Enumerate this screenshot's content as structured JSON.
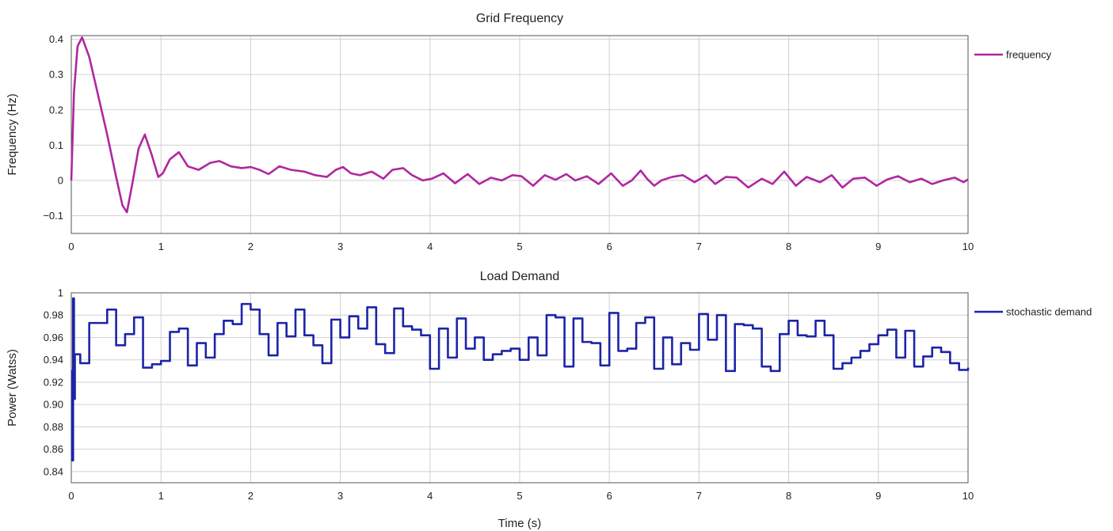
{
  "colors": {
    "frequency": "#b0279f",
    "demand": "#1c24a8"
  },
  "chart_data": [
    {
      "type": "line",
      "title": "Grid Frequency",
      "xlabel": "",
      "ylabel": "Frequency (Hz)",
      "xlim": [
        0,
        10
      ],
      "ylim": [
        -0.15,
        0.41
      ],
      "xticks": [
        0,
        1,
        2,
        3,
        4,
        5,
        6,
        7,
        8,
        9,
        10
      ],
      "xtick_labels": [
        "0",
        "1",
        "2",
        "3",
        "4",
        "5",
        "6",
        "7",
        "8",
        "9",
        "10"
      ],
      "yticks": [
        -0.1,
        0,
        0.1,
        0.2,
        0.3,
        0.4
      ],
      "ytick_labels": [
        "−0.1",
        "0",
        "0.1",
        "0.2",
        "0.3",
        "0.4"
      ],
      "grid": true,
      "legend": "right",
      "series": [
        {
          "name": "frequency",
          "x": [
            0,
            0.03,
            0.07,
            0.12,
            0.2,
            0.3,
            0.4,
            0.5,
            0.57,
            0.62,
            0.68,
            0.75,
            0.82,
            0.9,
            0.97,
            1.02,
            1.1,
            1.2,
            1.3,
            1.42,
            1.55,
            1.65,
            1.78,
            1.9,
            2.0,
            2.1,
            2.2,
            2.32,
            2.45,
            2.6,
            2.72,
            2.85,
            2.95,
            3.03,
            3.12,
            3.22,
            3.35,
            3.48,
            3.58,
            3.7,
            3.8,
            3.92,
            4.02,
            4.15,
            4.28,
            4.42,
            4.55,
            4.68,
            4.8,
            4.92,
            5.02,
            5.15,
            5.28,
            5.4,
            5.52,
            5.62,
            5.75,
            5.88,
            6.02,
            6.15,
            6.25,
            6.35,
            6.42,
            6.5,
            6.58,
            6.7,
            6.82,
            6.95,
            7.08,
            7.18,
            7.3,
            7.42,
            7.55,
            7.7,
            7.82,
            7.95,
            8.08,
            8.2,
            8.35,
            8.48,
            8.6,
            8.72,
            8.85,
            8.98,
            9.1,
            9.22,
            9.35,
            9.48,
            9.6,
            9.72,
            9.85,
            9.95,
            10.0
          ],
          "y": [
            0.0,
            0.25,
            0.38,
            0.405,
            0.35,
            0.24,
            0.13,
            0.01,
            -0.07,
            -0.09,
            -0.01,
            0.09,
            0.13,
            0.07,
            0.01,
            0.02,
            0.06,
            0.08,
            0.04,
            0.03,
            0.05,
            0.055,
            0.04,
            0.035,
            0.038,
            0.03,
            0.018,
            0.04,
            0.03,
            0.025,
            0.015,
            0.01,
            0.03,
            0.038,
            0.02,
            0.015,
            0.025,
            0.005,
            0.03,
            0.035,
            0.015,
            0.0,
            0.005,
            0.02,
            -0.008,
            0.018,
            -0.01,
            0.008,
            0.0,
            0.015,
            0.012,
            -0.015,
            0.015,
            0.002,
            0.018,
            0.0,
            0.012,
            -0.01,
            0.02,
            -0.015,
            0.0,
            0.028,
            0.005,
            -0.015,
            0.0,
            0.01,
            0.015,
            -0.005,
            0.015,
            -0.01,
            0.01,
            0.008,
            -0.02,
            0.005,
            -0.01,
            0.025,
            -0.015,
            0.01,
            -0.005,
            0.015,
            -0.02,
            0.005,
            0.008,
            -0.015,
            0.003,
            0.012,
            -0.005,
            0.005,
            -0.01,
            0.0,
            0.008,
            -0.005,
            0.003
          ]
        }
      ]
    },
    {
      "type": "line",
      "title": "Load Demand",
      "xlabel": "Time (s)",
      "ylabel": "Power (Watss)",
      "xlim": [
        0,
        10
      ],
      "ylim": [
        0.83,
        1.0
      ],
      "xticks": [
        0,
        1,
        2,
        3,
        4,
        5,
        6,
        7,
        8,
        9,
        10
      ],
      "xtick_labels": [
        "0",
        "1",
        "2",
        "3",
        "4",
        "5",
        "6",
        "7",
        "8",
        "9",
        "10"
      ],
      "yticks": [
        0.84,
        0.86,
        0.88,
        0.9,
        0.92,
        0.94,
        0.96,
        0.98,
        1.0
      ],
      "ytick_labels": [
        "0.84",
        "0.86",
        "0.88",
        "0.90",
        "0.92",
        "0.94",
        "0.96",
        "0.98",
        "1"
      ],
      "grid": true,
      "legend": "right",
      "series": [
        {
          "name": "stochastic demand",
          "step": true,
          "x": [
            0,
            0.01,
            0.02,
            0.03,
            0.04,
            0.1,
            0.2,
            0.3,
            0.4,
            0.5,
            0.6,
            0.7,
            0.8,
            0.9,
            1.0,
            1.1,
            1.2,
            1.3,
            1.4,
            1.5,
            1.6,
            1.7,
            1.8,
            1.9,
            2.0,
            2.1,
            2.2,
            2.3,
            2.4,
            2.5,
            2.6,
            2.7,
            2.8,
            2.9,
            3.0,
            3.1,
            3.2,
            3.3,
            3.4,
            3.5,
            3.6,
            3.7,
            3.8,
            3.9,
            4.0,
            4.1,
            4.2,
            4.3,
            4.4,
            4.5,
            4.6,
            4.7,
            4.8,
            4.9,
            5.0,
            5.1,
            5.2,
            5.3,
            5.4,
            5.5,
            5.6,
            5.7,
            5.8,
            5.9,
            6.0,
            6.1,
            6.2,
            6.3,
            6.4,
            6.5,
            6.6,
            6.7,
            6.8,
            6.9,
            7.0,
            7.1,
            7.2,
            7.3,
            7.4,
            7.5,
            7.6,
            7.7,
            7.8,
            7.9,
            8.0,
            8.1,
            8.2,
            8.3,
            8.4,
            8.5,
            8.6,
            8.7,
            8.8,
            8.9,
            9.0,
            9.1,
            9.2,
            9.3,
            9.4,
            9.5,
            9.6,
            9.7,
            9.8,
            9.9,
            10.0
          ],
          "y": [
            0.93,
            0.85,
            0.995,
            0.905,
            0.945,
            0.937,
            0.973,
            0.973,
            0.985,
            0.953,
            0.963,
            0.978,
            0.933,
            0.936,
            0.939,
            0.965,
            0.968,
            0.935,
            0.955,
            0.942,
            0.963,
            0.975,
            0.972,
            0.99,
            0.985,
            0.963,
            0.944,
            0.973,
            0.961,
            0.985,
            0.962,
            0.953,
            0.937,
            0.976,
            0.96,
            0.979,
            0.968,
            0.987,
            0.954,
            0.946,
            0.986,
            0.97,
            0.967,
            0.962,
            0.932,
            0.968,
            0.942,
            0.977,
            0.95,
            0.96,
            0.94,
            0.945,
            0.948,
            0.95,
            0.94,
            0.96,
            0.944,
            0.98,
            0.978,
            0.934,
            0.977,
            0.956,
            0.955,
            0.935,
            0.982,
            0.948,
            0.95,
            0.973,
            0.978,
            0.932,
            0.96,
            0.936,
            0.955,
            0.949,
            0.981,
            0.958,
            0.98,
            0.93,
            0.972,
            0.971,
            0.968,
            0.934,
            0.93,
            0.963,
            0.975,
            0.962,
            0.961,
            0.975,
            0.962,
            0.932,
            0.937,
            0.942,
            0.948,
            0.954,
            0.962,
            0.967,
            0.942,
            0.966,
            0.934,
            0.943,
            0.951,
            0.947,
            0.937,
            0.931,
            0.933
          ]
        }
      ]
    }
  ]
}
